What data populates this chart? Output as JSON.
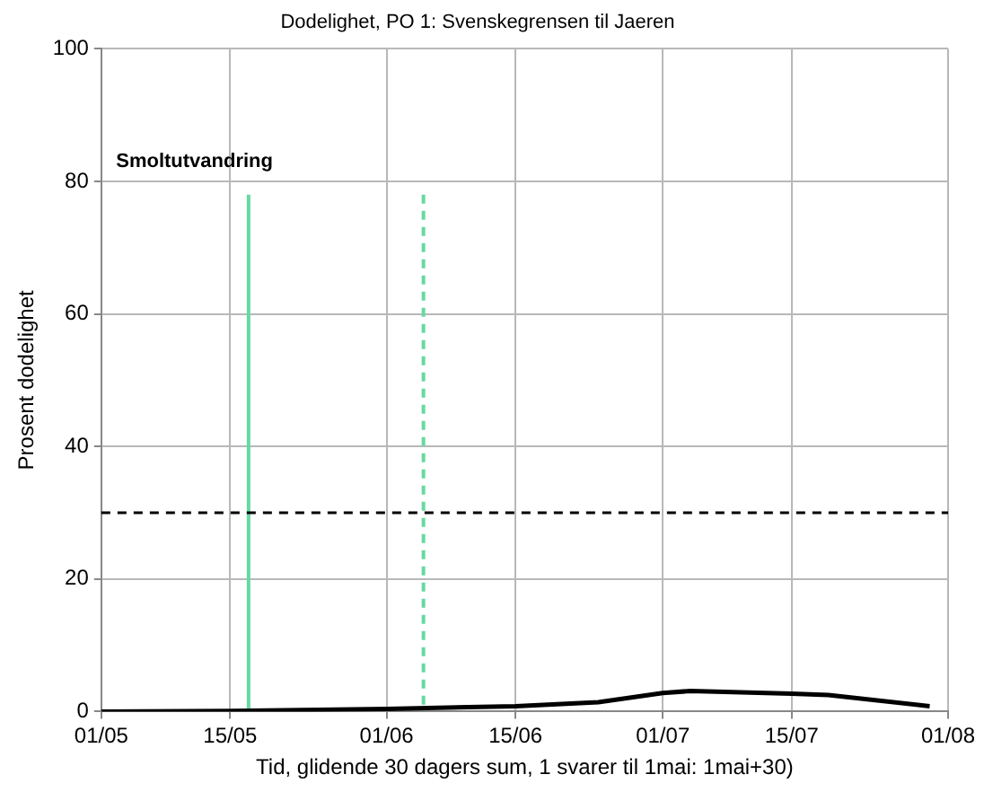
{
  "chart_data": {
    "type": "line",
    "title": "Dodelighet, PO 1: Svenskegrensen til Jaeren",
    "xlabel": "Tid, glidende 30 dagers sum, 1 svarer til 1mai: 1mai+30)",
    "ylabel": "Prosent dodelighet",
    "x": [
      "--05-01",
      "--05-15",
      "--06-01",
      "--06-15",
      "--06-24",
      "--07-01",
      "--07-04",
      "--07-15",
      "--07-19",
      "--07-30"
    ],
    "series": [
      {
        "color": "#000000",
        "values": [
          0,
          0.1,
          0.4,
          0.8,
          1.4,
          2.8,
          3.1,
          2.7,
          2.5,
          0.8
        ]
      },
      {
        "color": "#66d9a0",
        "x": [
          "--05-17",
          "--05-17"
        ],
        "values": [
          0,
          78
        ],
        "line_style": "solid"
      },
      {
        "color": "#66d9a0",
        "x": [
          "--06-05",
          "--06-05"
        ],
        "values": [
          78,
          0
        ],
        "line_style": "dashed"
      }
    ],
    "xlim": [
      "--05-01",
      "--08-01"
    ],
    "xticks": [
      {
        "value": "--05-01",
        "label": "01/05"
      },
      {
        "value": "--05-15",
        "label": "15/05"
      },
      {
        "value": "--06-01",
        "label": "01/06"
      },
      {
        "value": "--06-15",
        "label": "15/06"
      },
      {
        "value": "--07-01",
        "label": "01/07"
      },
      {
        "value": "--07-15",
        "label": "15/07"
      },
      {
        "value": "--08-01",
        "label": "01/08"
      }
    ],
    "ylim": [
      0,
      100
    ],
    "yticks": [
      0,
      20,
      40,
      60,
      80,
      100
    ],
    "ref_lines": [
      {
        "axis": "y",
        "value": 30,
        "color": "#000000",
        "line_style": "dashed"
      }
    ],
    "annotations": [
      "Smoltutvandring"
    ],
    "grid": true,
    "legend": false,
    "marker": "none",
    "line_style": "solid"
  }
}
